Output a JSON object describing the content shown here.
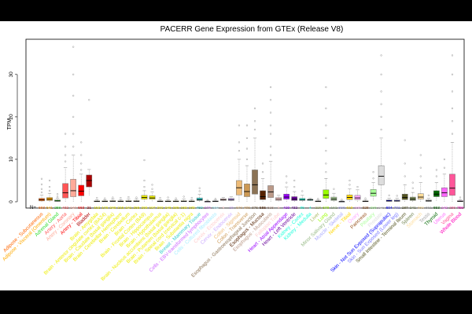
{
  "chart_data": {
    "type": "boxplot",
    "title": "PACERR Gene Expression from GTEx (Release V8)",
    "ylabel": "TPM",
    "xlabel": "",
    "n_label": "N=",
    "ylim": [
      0,
      37
    ],
    "yticks": [
      0,
      10,
      20,
      30
    ],
    "grid": false,
    "legend": "none",
    "tissues": [
      {
        "name": "Adipose - Subcutaneous",
        "n": 663,
        "color": "#FF6600",
        "q1": 0.2,
        "median": 0.45,
        "q3": 0.8,
        "wlo": 0,
        "whi": 1.6,
        "outliers": [
          2.2,
          3.0,
          4.1,
          5.4
        ]
      },
      {
        "name": "Adipose - Visceral (Omentum)",
        "n": 541,
        "color": "#FFAA00",
        "q1": 0.3,
        "median": 0.6,
        "q3": 1.0,
        "wlo": 0,
        "whi": 2.0,
        "outliers": [
          2.6,
          3.5,
          5.0
        ]
      },
      {
        "name": "Adrenal Gland",
        "n": 258,
        "color": "#33DD33",
        "q1": 0.1,
        "median": 0.2,
        "q3": 0.4,
        "wlo": 0,
        "whi": 0.8,
        "outliers": [
          1.2,
          1.8
        ]
      },
      {
        "name": "Artery - Aorta",
        "n": 432,
        "color": "#FF5555",
        "q1": 0.9,
        "median": 2.1,
        "q3": 4.3,
        "wlo": 0,
        "whi": 8.0,
        "outliers": [
          9.5,
          11.0,
          13.0,
          16.0
        ]
      },
      {
        "name": "Artery - Coronary",
        "n": 240,
        "color": "#FFAA99",
        "q1": 1.2,
        "median": 2.6,
        "q3": 5.3,
        "wlo": 0,
        "whi": 11.0,
        "outliers": [
          13.0,
          16.0,
          20.0,
          25.0,
          30.0,
          36.5
        ]
      },
      {
        "name": "Artery - Tibial",
        "n": 663,
        "color": "#FF0000",
        "q1": 1.4,
        "median": 2.5,
        "q3": 3.9,
        "wlo": 0,
        "whi": 6.5,
        "outliers": [
          7.5,
          9.0,
          11.0,
          14.0
        ]
      },
      {
        "name": "Bladder",
        "n": 21,
        "color": "#AA0000",
        "q1": 3.5,
        "median": 5.0,
        "q3": 6.3,
        "wlo": 1.5,
        "whi": 7.6,
        "outliers": [
          24.0
        ]
      },
      {
        "name": "Brain - Amygdala",
        "n": 152,
        "color": "#EEEE00",
        "q1": 0.05,
        "median": 0.1,
        "q3": 0.2,
        "wlo": 0,
        "whi": 0.5,
        "outliers": [
          0.9
        ]
      },
      {
        "name": "Brain - Anterior cingulate cortex (BA24)",
        "n": 176,
        "color": "#EEEE00",
        "q1": 0.05,
        "median": 0.1,
        "q3": 0.2,
        "wlo": 0,
        "whi": 0.5,
        "outliers": [
          0.8
        ]
      },
      {
        "name": "Brain - Caudate (basal ganglia)",
        "n": 246,
        "color": "#EEEE00",
        "q1": 0.05,
        "median": 0.12,
        "q3": 0.25,
        "wlo": 0,
        "whi": 0.6,
        "outliers": [
          1.0
        ]
      },
      {
        "name": "Brain - Cerebellar Hemisphere",
        "n": 215,
        "color": "#EEEE00",
        "q1": 0.05,
        "median": 0.1,
        "q3": 0.2,
        "wlo": 0,
        "whi": 0.5,
        "outliers": [
          0.9
        ]
      },
      {
        "name": "Brain - Cerebellum",
        "n": 241,
        "color": "#EEEE00",
        "q1": 0.05,
        "median": 0.1,
        "q3": 0.25,
        "wlo": 0,
        "whi": 0.6,
        "outliers": [
          1.1
        ]
      },
      {
        "name": "Brain - Cortex",
        "n": 255,
        "color": "#EEEE00",
        "q1": 0.05,
        "median": 0.12,
        "q3": 0.25,
        "wlo": 0,
        "whi": 0.6,
        "outliers": [
          1.0
        ]
      },
      {
        "name": "Brain - Frontal Cortex (BA9)",
        "n": 209,
        "color": "#EEEE00",
        "q1": 0.6,
        "median": 1.0,
        "q3": 1.5,
        "wlo": 0,
        "whi": 2.6,
        "outliers": [
          3.5,
          5.0,
          9.8
        ]
      },
      {
        "name": "Brain - Hippocampus",
        "n": 197,
        "color": "#EEEE00",
        "q1": 0.6,
        "median": 0.9,
        "q3": 1.4,
        "wlo": 0.1,
        "whi": 2.3,
        "outliers": [
          3.0,
          4.0
        ]
      },
      {
        "name": "Brain - Hypothalamus",
        "n": 202,
        "color": "#EEEE00",
        "q1": 0.05,
        "median": 0.1,
        "q3": 0.2,
        "wlo": 0,
        "whi": 0.5,
        "outliers": [
          0.9
        ]
      },
      {
        "name": "Brain - Nucleus accumbens (basal ganglia)",
        "n": 246,
        "color": "#EEEE00",
        "q1": 0.05,
        "median": 0.1,
        "q3": 0.2,
        "wlo": 0,
        "whi": 0.5,
        "outliers": [
          1.0
        ]
      },
      {
        "name": "Brain - Putamen (basal ganglia)",
        "n": 205,
        "color": "#EEEE00",
        "q1": 0.05,
        "median": 0.1,
        "q3": 0.2,
        "wlo": 0,
        "whi": 0.5,
        "outliers": [
          0.8
        ]
      },
      {
        "name": "Brain - Spinal cord (cervical c-1)",
        "n": 159,
        "color": "#EEEE00",
        "q1": 0.05,
        "median": 0.1,
        "q3": 0.25,
        "wlo": 0,
        "whi": 0.6,
        "outliers": [
          1.2
        ]
      },
      {
        "name": "Brain - Substantia nigra",
        "n": 139,
        "color": "#EEEE00",
        "q1": 0.05,
        "median": 0.1,
        "q3": 0.2,
        "wlo": 0,
        "whi": 0.5,
        "outliers": [
          0.9
        ]
      },
      {
        "name": "Breast - Mammary Tissue",
        "n": 459,
        "color": "#33CCCC",
        "q1": 0.3,
        "median": 0.5,
        "q3": 0.9,
        "wlo": 0,
        "whi": 1.8,
        "outliers": [
          2.5,
          3.2
        ]
      },
      {
        "name": "Cells - EBV-transformed lymphocytes",
        "n": 174,
        "color": "#CC66FF",
        "q1": 0.02,
        "median": 0.05,
        "q3": 0.1,
        "wlo": 0,
        "whi": 0.2,
        "outliers": [
          0.4
        ]
      },
      {
        "name": "Cells - Cultured fibroblasts",
        "n": 504,
        "color": "#AAEEFF",
        "q1": 0.05,
        "median": 0.1,
        "q3": 0.2,
        "wlo": 0,
        "whi": 0.4,
        "outliers": [
          0.7
        ]
      },
      {
        "name": "Cervix - Ectocervix",
        "n": 9,
        "color": "#FFCCCC",
        "q1": 0.3,
        "median": 0.5,
        "q3": 0.7,
        "wlo": 0.1,
        "whi": 1.0,
        "outliers": []
      },
      {
        "name": "Cervix - Endocervix",
        "n": 10,
        "color": "#CCAAFF",
        "q1": 0.3,
        "median": 0.5,
        "q3": 0.8,
        "wlo": 0.1,
        "whi": 1.2,
        "outliers": []
      },
      {
        "name": "Colon - Sigmoid",
        "n": 373,
        "color": "#EEBB77",
        "q1": 1.6,
        "median": 3.3,
        "q3": 5.0,
        "wlo": 0,
        "whi": 10.0,
        "outliers": [
          12.0,
          14.0,
          18.0
        ]
      },
      {
        "name": "Colon - Transverse",
        "n": 406,
        "color": "#CC9955",
        "q1": 1.2,
        "median": 2.4,
        "q3": 4.2,
        "wlo": 0,
        "whi": 8.5,
        "outliers": [
          10.0,
          12.5,
          15.0,
          18.0
        ]
      },
      {
        "name": "Esophagus - Gastroesophageal Junction",
        "n": 375,
        "color": "#8B7355",
        "q1": 1.8,
        "median": 4.0,
        "q3": 7.5,
        "wlo": 0,
        "whi": 15.0,
        "outliers": [
          17.0,
          19.0,
          22.0
        ]
      },
      {
        "name": "Esophagus - Mucosa",
        "n": 555,
        "color": "#552200",
        "q1": 0.5,
        "median": 1.2,
        "q3": 2.6,
        "wlo": 0,
        "whi": 5.5,
        "outliers": [
          7.0,
          9.0
        ]
      },
      {
        "name": "Esophagus - Muscularis",
        "n": 515,
        "color": "#BB9988",
        "q1": 1.0,
        "median": 2.3,
        "q3": 3.8,
        "wlo": 0,
        "whi": 9.5,
        "outliers": [
          11.0,
          13.0,
          16.0,
          18.0,
          21.0,
          24.0,
          27.0
        ]
      },
      {
        "name": "Fallopian Tube",
        "n": 9,
        "color": "#FFCCCC",
        "q1": 0.3,
        "median": 0.6,
        "q3": 1.0,
        "wlo": 0.1,
        "whi": 1.5,
        "outliers": []
      },
      {
        "name": "Heart - Atrial Appendage",
        "n": 429,
        "color": "#9900FF",
        "q1": 0.6,
        "median": 1.1,
        "q3": 1.8,
        "wlo": 0,
        "whi": 3.5,
        "outliers": [
          4.5,
          6.0
        ]
      },
      {
        "name": "Heart - Left Ventricle",
        "n": 432,
        "color": "#660099",
        "q1": 0.3,
        "median": 0.6,
        "q3": 1.2,
        "wlo": 0,
        "whi": 2.4,
        "outliers": [
          3.5,
          5.0
        ]
      },
      {
        "name": "Kidney - Cortex",
        "n": 85,
        "color": "#22FFDD",
        "q1": 0.3,
        "median": 0.5,
        "q3": 0.8,
        "wlo": 0,
        "whi": 1.5,
        "outliers": [
          2.5
        ]
      },
      {
        "name": "Kidney - Medulla",
        "n": 4,
        "color": "#22FFDD",
        "q1": 0.3,
        "median": 0.45,
        "q3": 0.6,
        "wlo": 0.2,
        "whi": 0.8,
        "outliers": []
      },
      {
        "name": "Liver",
        "n": 226,
        "color": "#AABB66",
        "q1": 0.05,
        "median": 0.1,
        "q3": 0.2,
        "wlo": 0,
        "whi": 0.4,
        "outliers": [
          0.7
        ]
      },
      {
        "name": "Lung",
        "n": 578,
        "color": "#99FF00",
        "q1": 0.8,
        "median": 1.6,
        "q3": 2.8,
        "wlo": 0,
        "whi": 5.5,
        "outliers": [
          7.0,
          9.0,
          12.0,
          15.0,
          18.0,
          22.0,
          27.0
        ]
      },
      {
        "name": "Minor Salivary Gland",
        "n": 162,
        "color": "#99BB88",
        "q1": 0.3,
        "median": 0.6,
        "q3": 1.1,
        "wlo": 0,
        "whi": 2.0,
        "outliers": [
          3.0
        ]
      },
      {
        "name": "Muscle - Skeletal",
        "n": 803,
        "color": "#AAAAFF",
        "q1": 0.02,
        "median": 0.05,
        "q3": 0.1,
        "wlo": 0,
        "whi": 0.2,
        "outliers": [
          0.5
        ]
      },
      {
        "name": "Nerve - Tibial",
        "n": 619,
        "color": "#FFD700",
        "q1": 0.5,
        "median": 1.0,
        "q3": 1.6,
        "wlo": 0,
        "whi": 3.0,
        "outliers": [
          4.0,
          5.0
        ]
      },
      {
        "name": "Ovary",
        "n": 180,
        "color": "#FFAAFF",
        "q1": 0.5,
        "median": 0.9,
        "q3": 1.5,
        "wlo": 0,
        "whi": 2.8,
        "outliers": [
          3.5
        ]
      },
      {
        "name": "Pancreas",
        "n": 328,
        "color": "#995522",
        "q1": 0.05,
        "median": 0.1,
        "q3": 0.2,
        "wlo": 0,
        "whi": 0.4,
        "outliers": [
          0.8
        ]
      },
      {
        "name": "Pituitary",
        "n": 283,
        "color": "#AAFF99",
        "q1": 1.3,
        "median": 2.0,
        "q3": 2.9,
        "wlo": 0.3,
        "whi": 4.5,
        "outliers": [
          5.5,
          7.0
        ]
      },
      {
        "name": "Prostate",
        "n": 245,
        "color": "#DDDDDD",
        "q1": 4.0,
        "median": 6.0,
        "q3": 8.5,
        "wlo": 0.5,
        "whi": 15.0,
        "outliers": [
          17.0,
          20.0,
          23.0,
          26.0,
          30.0,
          34.5
        ]
      },
      {
        "name": "Skin - Not Sun Exposed (Suprapubic)",
        "n": 604,
        "color": "#0000FF",
        "q1": 0.1,
        "median": 0.2,
        "q3": 0.4,
        "wlo": 0,
        "whi": 0.8,
        "outliers": [
          1.5
        ]
      },
      {
        "name": "Skin - Sun Exposed (Lower leg)",
        "n": 701,
        "color": "#7777FF",
        "q1": 0.1,
        "median": 0.2,
        "q3": 0.4,
        "wlo": 0,
        "whi": 0.8,
        "outliers": [
          1.4
        ]
      },
      {
        "name": "Small Intestine - Terminal Ileum",
        "n": 187,
        "color": "#555522",
        "q1": 0.5,
        "median": 1.0,
        "q3": 1.8,
        "wlo": 0,
        "whi": 4.0,
        "outliers": [
          6.0,
          9.0,
          14.5
        ]
      },
      {
        "name": "Spleen",
        "n": 241,
        "color": "#778855",
        "q1": 0.3,
        "median": 0.6,
        "q3": 1.1,
        "wlo": 0,
        "whi": 2.2,
        "outliers": [
          3.2,
          4.5
        ]
      },
      {
        "name": "Stomach",
        "n": 359,
        "color": "#FFDD99",
        "q1": 0.6,
        "median": 1.1,
        "q3": 1.9,
        "wlo": 0,
        "whi": 4.5,
        "outliers": [
          6.0,
          8.0,
          11.0
        ]
      },
      {
        "name": "Testis",
        "n": 361,
        "color": "#AAAAAA",
        "q1": 0.1,
        "median": 0.2,
        "q3": 0.4,
        "wlo": 0,
        "whi": 0.8,
        "outliers": [
          1.5
        ]
      },
      {
        "name": "Thyroid",
        "n": 653,
        "color": "#006600",
        "q1": 1.2,
        "median": 1.8,
        "q3": 2.6,
        "wlo": 0.2,
        "whi": 4.5,
        "outliers": [
          6.0,
          7.5
        ]
      },
      {
        "name": "Uterus",
        "n": 142,
        "color": "#FF66FF",
        "q1": 1.2,
        "median": 2.1,
        "q3": 3.3,
        "wlo": 0,
        "whi": 6.5,
        "outliers": [
          8.0,
          10.0
        ]
      },
      {
        "name": "Vagina",
        "n": 156,
        "color": "#FF5599",
        "q1": 1.5,
        "median": 3.2,
        "q3": 6.5,
        "wlo": 0,
        "whi": 14.0,
        "outliers": [
          16.0,
          19.0,
          22.0,
          26.0,
          30.0,
          34.5
        ]
      },
      {
        "name": "Whole Blood",
        "n": 755,
        "color": "#FF00BB",
        "q1": 0.05,
        "median": 0.1,
        "q3": 0.25,
        "wlo": 0,
        "whi": 0.5,
        "outliers": [
          1.0
        ]
      }
    ]
  }
}
